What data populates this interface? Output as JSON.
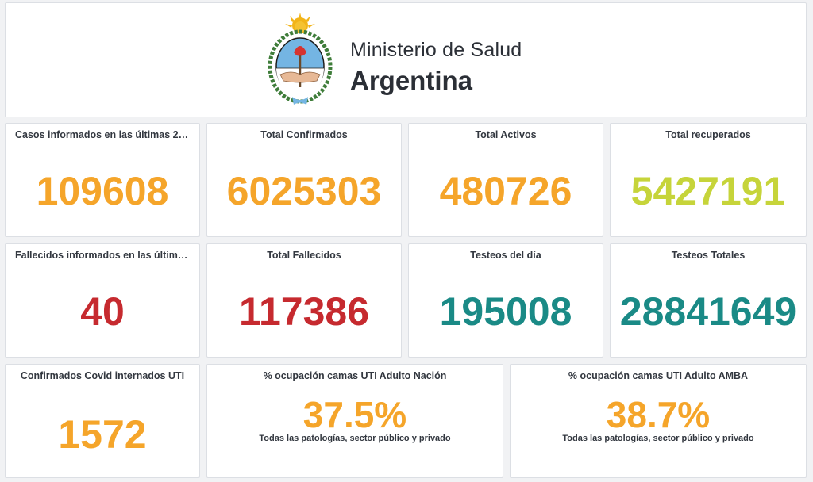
{
  "header": {
    "line1": "Ministerio de Salud",
    "line2": "Argentina",
    "logo_icon": "coat-of-arms-argentina-icon"
  },
  "cards_row1": [
    {
      "title": "Casos informados en las últimas 24...",
      "value": "109608",
      "color": "#f5a52a"
    },
    {
      "title": "Total Confirmados",
      "value": "6025303",
      "color": "#f5a52a"
    },
    {
      "title": "Total Activos",
      "value": "480726",
      "color": "#f5a52a"
    },
    {
      "title": "Total recuperados",
      "value": "5427191",
      "color": "#c6d43a"
    }
  ],
  "cards_row2": [
    {
      "title": "Fallecidos informados en las última...",
      "value": "40",
      "color": "#c62a2f"
    },
    {
      "title": "Total Fallecidos",
      "value": "117386",
      "color": "#c62a2f"
    },
    {
      "title": "Testeos del día",
      "value": "195008",
      "color": "#1a8a86"
    },
    {
      "title": "Testeos Totales",
      "value": "28841649",
      "color": "#1a8a86"
    }
  ],
  "cards_row3": {
    "uti": {
      "title": "Confirmados Covid internados UTI",
      "value": "1572",
      "color": "#f5a52a"
    },
    "nacion": {
      "title": "% ocupación camas UTI Adulto Nación",
      "value": "37.5%",
      "subtitle": "Todas las patologías, sector público y privado",
      "color": "#f5a52a"
    },
    "amba": {
      "title": "% ocupación camas UTI Adulto AMBA",
      "value": "38.7%",
      "subtitle": "Todas las patologías, sector público y privado",
      "color": "#f5a52a"
    }
  }
}
